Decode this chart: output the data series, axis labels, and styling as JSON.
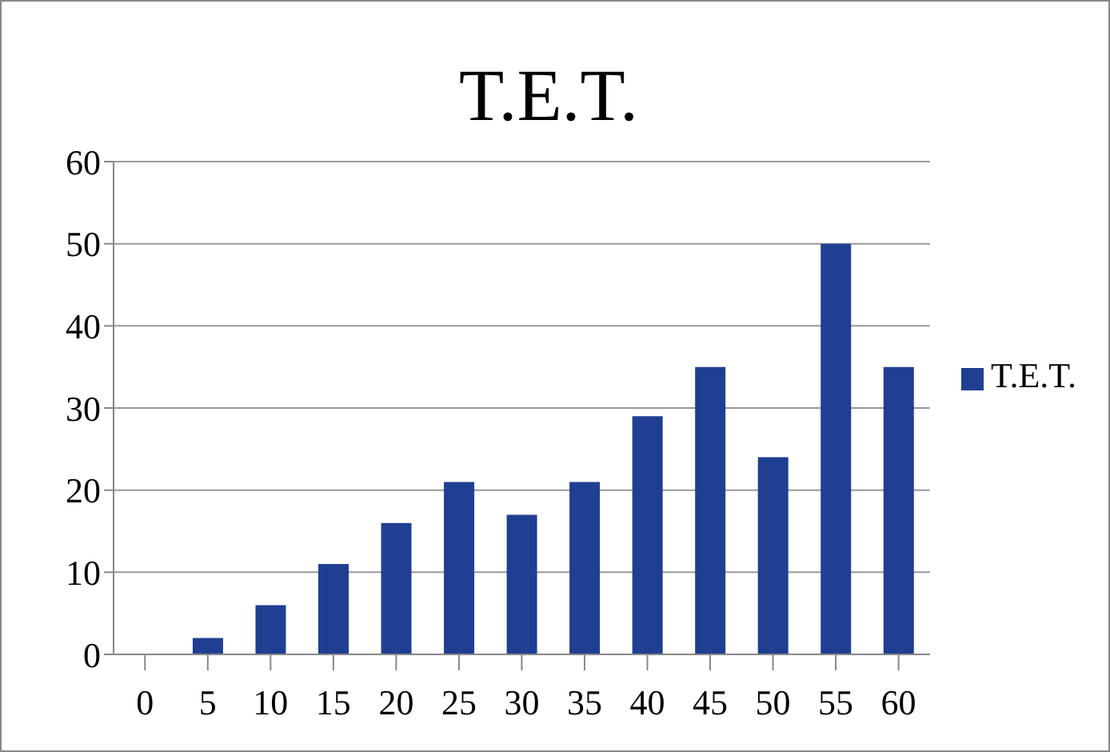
{
  "chart_data": {
    "type": "bar",
    "title": "T.E.T.",
    "categories": [
      "0",
      "5",
      "10",
      "15",
      "20",
      "25",
      "30",
      "35",
      "40",
      "45",
      "50",
      "55",
      "60"
    ],
    "series": [
      {
        "name": "T.E.T.",
        "color": "#203f92",
        "values": [
          0,
          2,
          6,
          11,
          16,
          21,
          17,
          21,
          29,
          35,
          24,
          50,
          35
        ]
      }
    ],
    "ylim": [
      0,
      60
    ],
    "yticks": [
      0,
      10,
      20,
      30,
      40,
      50,
      60
    ],
    "grid": "y",
    "legend": "right"
  }
}
